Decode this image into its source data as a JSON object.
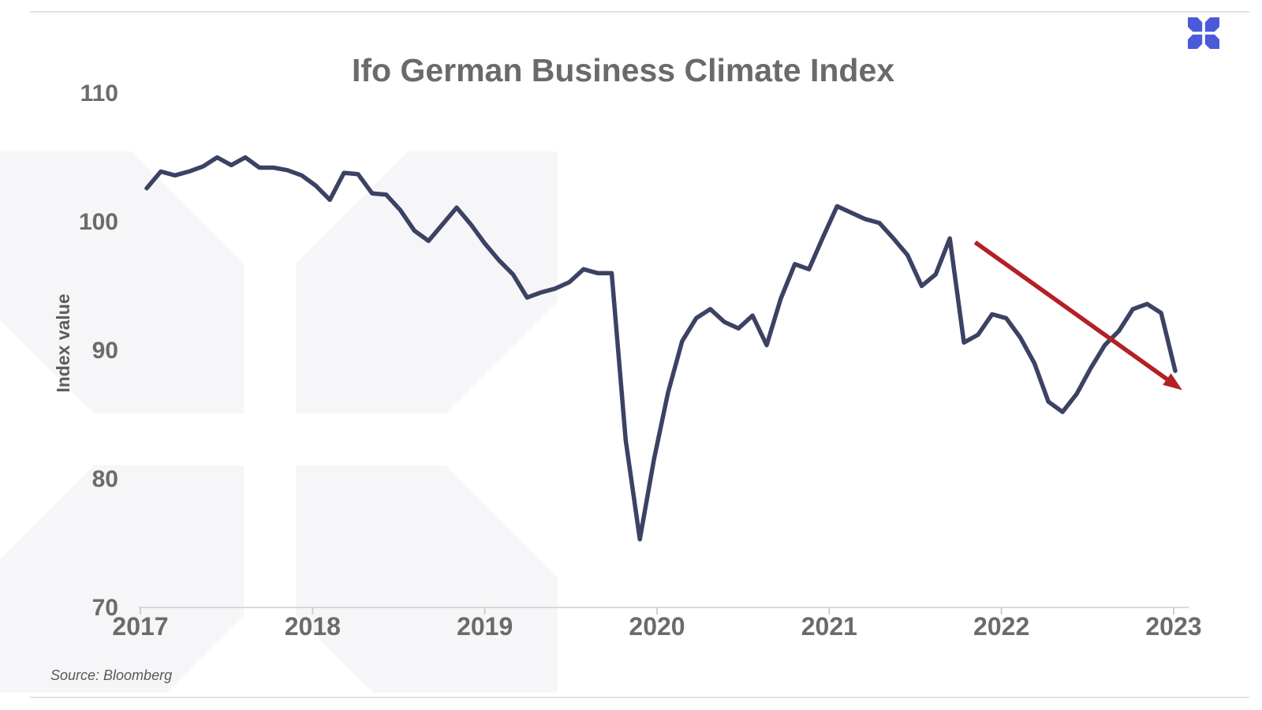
{
  "meta": {
    "source_note": "Source: Bloomberg"
  },
  "brand": {
    "logo_icon": "x-pinwheel-icon",
    "logo_color": "#4a5ad8",
    "watermark_color": "#f6f6f8"
  },
  "colors": {
    "line": "#3b4264",
    "arrow": "#b32025",
    "title_text": "#6a6a6a",
    "axis_text": "#6b6b6b",
    "y_axis_title_text": "#5d5d5d",
    "source_text": "#595959",
    "axis_line": "#d9d9d9",
    "tick_mark": "#cfcfcf",
    "border_line": "#e3e3e3",
    "background": "#ffffff"
  },
  "chart_data": {
    "type": "line",
    "title": "Ifo German Business Climate Index",
    "xlabel": "",
    "ylabel": "Index value",
    "ylim": [
      70,
      110
    ],
    "y_ticks": [
      110,
      100,
      90,
      80,
      70
    ],
    "x_ticks": [
      "2017",
      "2018",
      "2019",
      "2020",
      "2021",
      "2022",
      "2023"
    ],
    "grid": false,
    "legend": "none",
    "frequency": "monthly",
    "start_month": "2017-01",
    "end_month": "2023-02",
    "series": [
      {
        "name": "Ifo Business Climate Index",
        "values": [
          102.6,
          103.9,
          103.6,
          103.9,
          104.3,
          105.0,
          104.4,
          105.0,
          104.2,
          104.2,
          104.0,
          103.6,
          102.8,
          101.7,
          103.8,
          103.7,
          102.2,
          102.1,
          100.9,
          99.3,
          98.5,
          99.8,
          101.1,
          99.8,
          98.3,
          97.0,
          95.9,
          94.1,
          94.5,
          94.8,
          95.3,
          96.3,
          96.0,
          96.0,
          83.0,
          75.3,
          81.5,
          86.7,
          90.7,
          92.5,
          93.2,
          92.2,
          91.7,
          92.7,
          90.4,
          94.0,
          96.7,
          96.3,
          98.8,
          101.2,
          100.7,
          100.2,
          99.9,
          98.7,
          97.4,
          95.0,
          95.9,
          98.7,
          90.6,
          91.2,
          92.8,
          92.5,
          91.0,
          89.0,
          86.0,
          85.2,
          86.6,
          88.6,
          90.4,
          91.5,
          93.2,
          93.6,
          92.9,
          88.4
        ]
      }
    ],
    "annotation_arrow": {
      "description": "downward trend arrow",
      "from": {
        "month_index": 58.8,
        "value": 98.4
      },
      "to": {
        "month_index": 73.5,
        "value": 86.9
      }
    }
  }
}
